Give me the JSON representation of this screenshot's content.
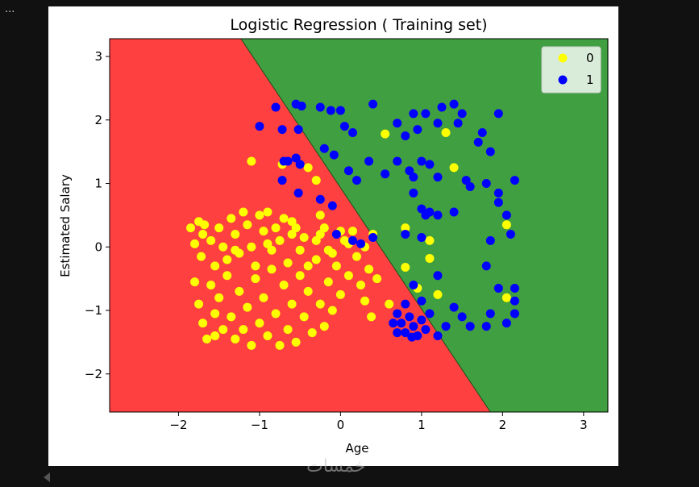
{
  "ui": {
    "ellipsis": "...",
    "watermark": "خمسات"
  },
  "chart_data": {
    "type": "scatter",
    "title": "Logistic Regression ( Training set)",
    "xlabel": "Age",
    "ylabel": "Estimated Salary",
    "xlim": [
      -2.85,
      3.3
    ],
    "ylim": [
      -2.6,
      3.28
    ],
    "xticks": [
      -2,
      -1,
      0,
      1,
      2,
      3
    ],
    "yticks": [
      -2,
      -1,
      0,
      1,
      2,
      3
    ],
    "xtick_labels": [
      "−2",
      "−1",
      "0",
      "1",
      "2",
      "3"
    ],
    "ytick_labels": [
      "−2",
      "−1",
      "0",
      "1",
      "2",
      "3"
    ],
    "legend": {
      "placement": "top-right",
      "entries": [
        "0",
        "1"
      ]
    },
    "grid": false,
    "colors": {
      "region_0": "#ff4040",
      "region_1": "#409f40",
      "point_0": "#ffff00",
      "point_1": "#0000ff",
      "boundary": "#1d4d1d"
    },
    "decision_boundary": {
      "points": [
        [
          -1.23,
          3.28
        ],
        [
          1.85,
          -2.6
        ]
      ]
    },
    "series": [
      {
        "name": "0",
        "color": "#ffff00",
        "points": [
          [
            -1.85,
            0.3
          ],
          [
            -1.8,
            0.05
          ],
          [
            -1.75,
            0.4
          ],
          [
            -1.7,
            0.2
          ],
          [
            -1.72,
            -0.15
          ],
          [
            -1.68,
            0.35
          ],
          [
            -1.6,
            0.1
          ],
          [
            -1.55,
            -0.3
          ],
          [
            -1.5,
            0.3
          ],
          [
            -1.45,
            0.0
          ],
          [
            -1.4,
            -0.2
          ],
          [
            -1.35,
            0.45
          ],
          [
            -1.3,
            0.2
          ],
          [
            -1.25,
            -0.1
          ],
          [
            -1.2,
            0.55
          ],
          [
            -1.15,
            0.35
          ],
          [
            -1.1,
            0.0
          ],
          [
            -1.05,
            -0.3
          ],
          [
            -1.0,
            0.5
          ],
          [
            -0.95,
            0.25
          ],
          [
            -0.9,
            0.55
          ],
          [
            -0.85,
            -0.05
          ],
          [
            -0.8,
            0.3
          ],
          [
            -0.75,
            0.1
          ],
          [
            -0.7,
            0.45
          ],
          [
            -0.65,
            -0.25
          ],
          [
            -0.6,
            0.2
          ],
          [
            -0.55,
            0.3
          ],
          [
            -0.5,
            -0.05
          ],
          [
            -0.45,
            0.15
          ],
          [
            -1.8,
            -0.55
          ],
          [
            -1.75,
            -0.9
          ],
          [
            -1.7,
            -1.2
          ],
          [
            -1.65,
            -1.45
          ],
          [
            -1.6,
            -0.6
          ],
          [
            -1.55,
            -1.05
          ],
          [
            -1.5,
            -0.8
          ],
          [
            -1.45,
            -1.3
          ],
          [
            -1.4,
            -0.45
          ],
          [
            -1.35,
            -1.1
          ],
          [
            -1.3,
            -1.45
          ],
          [
            -1.25,
            -0.7
          ],
          [
            -1.2,
            -1.3
          ],
          [
            -1.15,
            -0.95
          ],
          [
            -1.1,
            -1.55
          ],
          [
            -1.05,
            -0.5
          ],
          [
            -1.0,
            -1.2
          ],
          [
            -0.95,
            -0.8
          ],
          [
            -0.9,
            -1.4
          ],
          [
            -0.85,
            -0.35
          ],
          [
            -0.8,
            -1.05
          ],
          [
            -0.75,
            -1.55
          ],
          [
            -0.7,
            -0.6
          ],
          [
            -0.65,
            -1.3
          ],
          [
            -0.6,
            -0.9
          ],
          [
            -0.55,
            -1.5
          ],
          [
            -0.5,
            -0.45
          ],
          [
            -0.45,
            -1.1
          ],
          [
            -0.4,
            -0.7
          ],
          [
            -0.35,
            -1.35
          ],
          [
            -0.3,
            -0.2
          ],
          [
            -0.25,
            -0.9
          ],
          [
            -0.2,
            -1.25
          ],
          [
            -0.15,
            -0.55
          ],
          [
            -0.1,
            -1.0
          ],
          [
            -0.05,
            -0.3
          ],
          [
            0.0,
            -0.75
          ],
          [
            0.05,
            0.1
          ],
          [
            0.1,
            -0.45
          ],
          [
            0.15,
            0.25
          ],
          [
            0.2,
            -0.15
          ],
          [
            0.25,
            -0.6
          ],
          [
            0.3,
            0.0
          ],
          [
            0.35,
            -0.35
          ],
          [
            0.4,
            0.2
          ],
          [
            0.45,
            -0.5
          ],
          [
            -0.3,
            0.1
          ],
          [
            -0.2,
            0.3
          ],
          [
            -0.1,
            -0.1
          ],
          [
            0.0,
            0.25
          ],
          [
            0.1,
            0.05
          ],
          [
            -0.4,
            -0.3
          ],
          [
            -0.25,
            0.2
          ],
          [
            0.3,
            -0.85
          ],
          [
            -0.9,
            0.05
          ],
          [
            -1.3,
            -0.05
          ],
          [
            -1.55,
            -1.4
          ],
          [
            -0.6,
            0.4
          ],
          [
            0.38,
            -1.1
          ],
          [
            -0.15,
            -0.05
          ],
          [
            0.55,
            1.78
          ],
          [
            1.3,
            1.8
          ],
          [
            1.4,
            1.25
          ],
          [
            -0.72,
            1.3
          ],
          [
            -0.4,
            1.25
          ],
          [
            -0.3,
            1.05
          ],
          [
            -1.1,
            1.35
          ],
          [
            0.8,
            0.3
          ],
          [
            1.1,
            0.1
          ],
          [
            0.8,
            -0.32
          ],
          [
            1.1,
            -0.18
          ],
          [
            1.2,
            -0.75
          ],
          [
            0.95,
            -0.65
          ],
          [
            2.05,
            0.35
          ],
          [
            2.05,
            -0.8
          ],
          [
            0.6,
            -0.9
          ],
          [
            -0.25,
            0.5
          ]
        ]
      },
      {
        "name": "1",
        "color": "#0000ff",
        "points": [
          [
            -1.0,
            1.9
          ],
          [
            -0.8,
            2.2
          ],
          [
            -0.72,
            1.85
          ],
          [
            -0.55,
            2.25
          ],
          [
            -0.48,
            2.22
          ],
          [
            -0.52,
            1.85
          ],
          [
            -0.25,
            2.2
          ],
          [
            -0.12,
            2.15
          ],
          [
            0.0,
            2.15
          ],
          [
            0.05,
            1.9
          ],
          [
            0.15,
            1.8
          ],
          [
            0.4,
            2.25
          ],
          [
            0.7,
            1.95
          ],
          [
            0.8,
            1.75
          ],
          [
            0.9,
            2.1
          ],
          [
            0.95,
            1.85
          ],
          [
            1.05,
            2.1
          ],
          [
            1.2,
            1.95
          ],
          [
            1.25,
            2.2
          ],
          [
            1.4,
            2.25
          ],
          [
            1.5,
            2.1
          ],
          [
            1.45,
            1.95
          ],
          [
            1.7,
            1.65
          ],
          [
            1.75,
            1.8
          ],
          [
            1.85,
            1.5
          ],
          [
            1.95,
            2.1
          ],
          [
            -0.7,
            1.35
          ],
          [
            -0.65,
            1.35
          ],
          [
            -0.55,
            1.4
          ],
          [
            -0.5,
            1.3
          ],
          [
            -0.2,
            1.55
          ],
          [
            -0.08,
            1.45
          ],
          [
            0.1,
            1.2
          ],
          [
            0.2,
            1.05
          ],
          [
            0.35,
            1.35
          ],
          [
            0.55,
            1.15
          ],
          [
            0.7,
            1.35
          ],
          [
            0.85,
            1.2
          ],
          [
            0.9,
            1.1
          ],
          [
            1.0,
            1.35
          ],
          [
            1.1,
            1.3
          ],
          [
            1.2,
            1.1
          ],
          [
            1.55,
            1.05
          ],
          [
            1.6,
            0.95
          ],
          [
            1.8,
            1.0
          ],
          [
            1.95,
            0.85
          ],
          [
            2.15,
            1.05
          ],
          [
            -0.72,
            1.05
          ],
          [
            -0.52,
            0.85
          ],
          [
            -0.25,
            0.75
          ],
          [
            -0.1,
            0.65
          ],
          [
            0.9,
            0.85
          ],
          [
            1.0,
            0.6
          ],
          [
            1.05,
            0.5
          ],
          [
            1.1,
            0.55
          ],
          [
            1.2,
            0.5
          ],
          [
            1.4,
            0.55
          ],
          [
            1.95,
            0.7
          ],
          [
            2.05,
            0.5
          ],
          [
            2.1,
            0.2
          ],
          [
            1.85,
            0.1
          ],
          [
            1.0,
            0.15
          ],
          [
            0.8,
            0.2
          ],
          [
            0.4,
            0.15
          ],
          [
            0.15,
            0.1
          ],
          [
            -0.05,
            0.2
          ],
          [
            0.25,
            0.05
          ],
          [
            0.9,
            -0.6
          ],
          [
            1.2,
            -0.45
          ],
          [
            1.8,
            -0.3
          ],
          [
            1.95,
            -0.65
          ],
          [
            2.15,
            -0.65
          ],
          [
            0.8,
            -0.9
          ],
          [
            0.7,
            -1.05
          ],
          [
            0.75,
            -1.2
          ],
          [
            0.8,
            -1.35
          ],
          [
            0.85,
            -1.1
          ],
          [
            0.9,
            -1.25
          ],
          [
            0.95,
            -1.4
          ],
          [
            1.0,
            -1.15
          ],
          [
            1.05,
            -1.3
          ],
          [
            1.1,
            -1.05
          ],
          [
            1.2,
            -1.4
          ],
          [
            1.3,
            -1.25
          ],
          [
            1.4,
            -0.95
          ],
          [
            1.5,
            -1.1
          ],
          [
            1.6,
            -1.25
          ],
          [
            1.8,
            -1.25
          ],
          [
            2.05,
            -1.2
          ],
          [
            2.15,
            -1.05
          ],
          [
            2.15,
            -0.85
          ],
          [
            1.85,
            -1.05
          ],
          [
            0.7,
            -1.35
          ],
          [
            0.88,
            -1.42
          ],
          [
            0.65,
            -1.2
          ],
          [
            1.0,
            -0.85
          ]
        ]
      }
    ]
  }
}
